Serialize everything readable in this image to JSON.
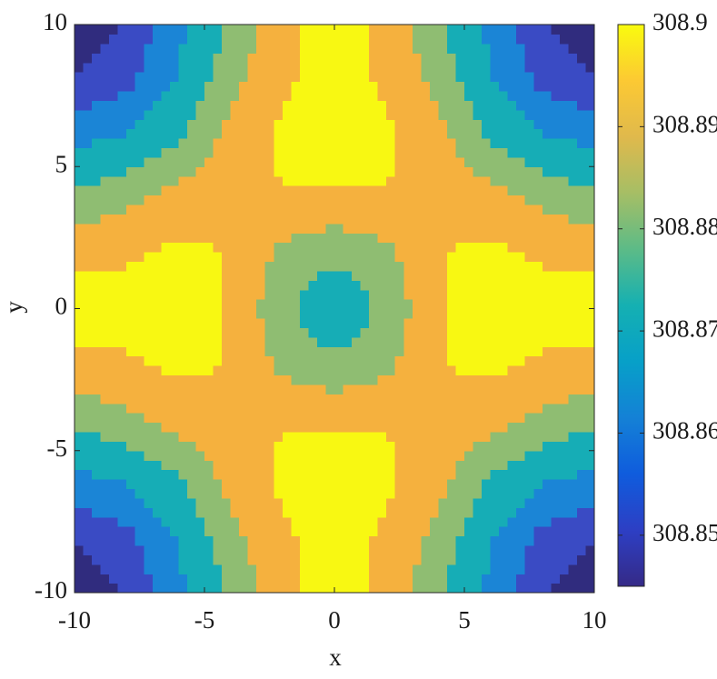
{
  "chart_data": {
    "type": "contour",
    "xlabel": "x",
    "ylabel": "y",
    "x": [
      -10,
      -8,
      -6,
      -4,
      -2,
      0,
      2,
      4,
      6,
      8,
      10
    ],
    "y": [
      -10,
      -8,
      -6,
      -4,
      -2,
      0,
      2,
      4,
      6,
      8,
      10
    ],
    "z": [
      [
        308.845,
        308.851,
        308.862,
        308.875,
        308.8905,
        308.897,
        308.8905,
        308.875,
        308.862,
        308.851,
        308.845
      ],
      [
        308.851,
        308.855,
        308.865,
        308.88,
        308.891,
        308.899,
        308.891,
        308.88,
        308.865,
        308.855,
        308.851
      ],
      [
        308.862,
        308.865,
        308.873,
        308.8855,
        308.895,
        308.899,
        308.895,
        308.8855,
        308.873,
        308.865,
        308.862
      ],
      [
        308.875,
        308.88,
        308.8855,
        308.892,
        308.8925,
        308.892,
        308.8925,
        308.892,
        308.8855,
        308.88,
        308.875
      ],
      [
        308.8905,
        308.891,
        308.895,
        308.8925,
        308.881,
        308.8755,
        308.881,
        308.8925,
        308.895,
        308.891,
        308.8905
      ],
      [
        308.897,
        308.899,
        308.899,
        308.892,
        308.8755,
        308.868,
        308.8755,
        308.892,
        308.899,
        308.899,
        308.897
      ],
      [
        308.8905,
        308.891,
        308.895,
        308.8925,
        308.881,
        308.8755,
        308.881,
        308.8925,
        308.895,
        308.891,
        308.8905
      ],
      [
        308.875,
        308.88,
        308.8855,
        308.892,
        308.8925,
        308.892,
        308.8925,
        308.892,
        308.8855,
        308.88,
        308.875
      ],
      [
        308.862,
        308.865,
        308.873,
        308.8855,
        308.895,
        308.899,
        308.895,
        308.8855,
        308.873,
        308.865,
        308.862
      ],
      [
        308.851,
        308.855,
        308.865,
        308.88,
        308.891,
        308.899,
        308.891,
        308.88,
        308.865,
        308.855,
        308.851
      ],
      [
        308.845,
        308.851,
        308.862,
        308.875,
        308.8905,
        308.897,
        308.8905,
        308.875,
        308.862,
        308.851,
        308.845
      ]
    ],
    "levels": [
      308.85,
      308.857,
      308.864,
      308.874,
      308.883,
      308.893
    ],
    "level_colors": [
      "#302c7e",
      "#3a4bc4",
      "#1b85d6",
      "#16adb6",
      "#8fbd72",
      "#f5b13e",
      "#f8f812"
    ],
    "xlim": [
      -10,
      10
    ],
    "ylim": [
      -10,
      10
    ],
    "xticks": [
      -10,
      -5,
      0,
      5,
      10
    ],
    "yticks": [
      -10,
      -5,
      0,
      5,
      10
    ],
    "colorbar": {
      "clim": [
        308.845,
        308.9
      ],
      "ticks": [
        308.85,
        308.86,
        308.87,
        308.88,
        308.89,
        308.9
      ],
      "colormap": [
        "#352a87",
        "#2d3fc4",
        "#0f5cdd",
        "#1481d6",
        "#07a0c8",
        "#15b0b2",
        "#5cbb87",
        "#a6be65",
        "#e0b94c",
        "#fcc933",
        "#f9fb0e"
      ]
    }
  }
}
